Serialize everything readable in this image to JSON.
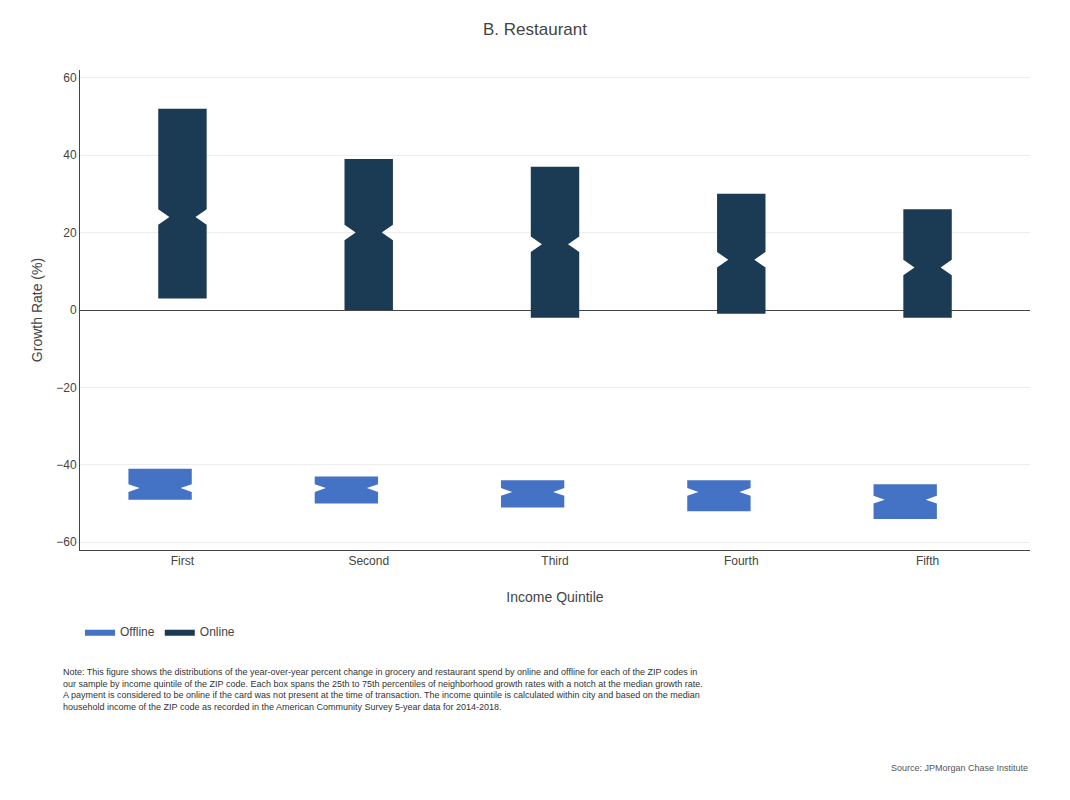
{
  "chart_data": {
    "type": "box",
    "title": "B. Restaurant",
    "xlabel": "Income Quintile",
    "ylabel": "Growth Rate (%)",
    "categories": [
      "First",
      "Second",
      "Third",
      "Fourth",
      "Fifth"
    ],
    "series": [
      {
        "name": "Offline",
        "color": "#4472c4",
        "boxes": [
          {
            "q1": -49,
            "median": -46,
            "q3": -41,
            "notch_low": -47,
            "notch_high": -45
          },
          {
            "q1": -50,
            "median": -46,
            "q3": -43,
            "notch_low": -47,
            "notch_high": -45
          },
          {
            "q1": -51,
            "median": -47,
            "q3": -44,
            "notch_low": -48,
            "notch_high": -46
          },
          {
            "q1": -52,
            "median": -47,
            "q3": -44,
            "notch_low": -48,
            "notch_high": -46
          },
          {
            "q1": -54,
            "median": -49,
            "q3": -45,
            "notch_low": -50,
            "notch_high": -48
          }
        ]
      },
      {
        "name": "Online",
        "color": "#1b3a54",
        "boxes": [
          {
            "q1": 3,
            "median": 24,
            "q3": 52,
            "notch_low": 22,
            "notch_high": 26
          },
          {
            "q1": 0,
            "median": 20,
            "q3": 39,
            "notch_low": 18,
            "notch_high": 22
          },
          {
            "q1": -2,
            "median": 17,
            "q3": 37,
            "notch_low": 15,
            "notch_high": 19
          },
          {
            "q1": -1,
            "median": 13,
            "q3": 30,
            "notch_low": 11,
            "notch_high": 15
          },
          {
            "q1": -2,
            "median": 11,
            "q3": 26,
            "notch_low": 9,
            "notch_high": 13
          }
        ]
      }
    ],
    "ylim": [
      -62,
      62
    ],
    "yticks": [
      {
        "value": -60,
        "label": "−60"
      },
      {
        "value": -40,
        "label": "−40"
      },
      {
        "value": -20,
        "label": "−20"
      },
      0,
      20,
      40,
      60
    ],
    "grid": true,
    "legend": "bottom",
    "annotations": [
      "Note: This figure shows the distributions of the year-over-year percent change in grocery and restaurant spend by online and offline for each of the ZIP codes in\nour sample by income quintile of the ZIP code. Each box spans the 25th to 75th percentiles of neighborhood growth rates with a notch at the median growth rate.\nA payment is considered to be online if the card was not present at the time of transaction. The income quintile is calculated within city and based on the median\nhousehold income of the ZIP code as recorded in the American Community Survey 5-year data for 2014-2018.",
      "Source: JPMorgan Chase Institute"
    ]
  }
}
